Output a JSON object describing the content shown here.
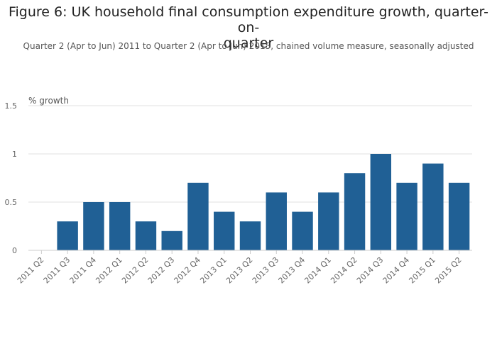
{
  "chart_data": {
    "type": "bar",
    "title_line1": "Figure 6: UK household final consumption expenditure growth, quarter-on-",
    "title_line2": "quarter",
    "subtitle": "Quarter 2 (Apr to Jun) 2011 to Quarter 2 (Apr to Jun) 2015, chained volume measure, seasonally adjusted",
    "ylabel": "% growth",
    "xlabel": "",
    "ylim": [
      0,
      1.5
    ],
    "yticks": [
      "0",
      "0.5",
      "1",
      "1.5"
    ],
    "categories": [
      "2011 Q2",
      "2011 Q3",
      "2011 Q4",
      "2012 Q1",
      "2012 Q2",
      "2012 Q3",
      "2012 Q4",
      "2013 Q1",
      "2013 Q2",
      "2013 Q3",
      "2013 Q4",
      "2014 Q1",
      "2014 Q2",
      "2014 Q3",
      "2014 Q4",
      "2015 Q1",
      "2015 Q2"
    ],
    "values": [
      0,
      0.3,
      0.5,
      0.5,
      0.3,
      0.2,
      0.7,
      0.4,
      0.3,
      0.6,
      0.4,
      0.6,
      0.8,
      1.0,
      0.7,
      0.9,
      0.7
    ],
    "bar_color": "#206095",
    "grid": true
  }
}
